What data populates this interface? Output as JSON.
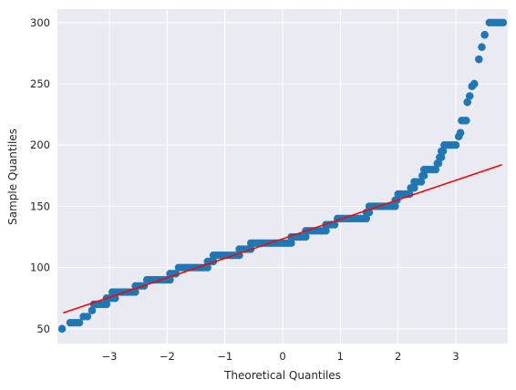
{
  "chart_data": {
    "type": "scatter",
    "style": {
      "background": "#eaeaf2",
      "grid": true,
      "grid_color": "#ffffff",
      "point_color": "#1f77b4",
      "line_color": "#ff0000"
    },
    "xlabel": "Theoretical Quantiles",
    "ylabel": "Sample Quantiles",
    "xlim": [
      -3.9,
      3.9
    ],
    "ylim": [
      38,
      311
    ],
    "xticks": [
      -3,
      -2,
      -1,
      0,
      1,
      2,
      3
    ],
    "xtick_labels": [
      "−3",
      "−2",
      "−1",
      "0",
      "1",
      "2",
      "3"
    ],
    "yticks": [
      50,
      100,
      150,
      200,
      250,
      300
    ],
    "ytick_labels": [
      "50",
      "100",
      "150",
      "200",
      "250",
      "300"
    ],
    "reference_line": {
      "x": [
        -3.8,
        3.8
      ],
      "y": [
        63,
        184
      ]
    },
    "steps": [
      {
        "y": 50,
        "x0": -3.82,
        "x1": -3.82
      },
      {
        "y": 55,
        "x0": -3.68,
        "x1": -3.52
      },
      {
        "y": 60,
        "x0": -3.45,
        "x1": -3.38
      },
      {
        "y": 65,
        "x0": -3.3,
        "x1": -3.3
      },
      {
        "y": 70,
        "x0": -3.27,
        "x1": -3.05
      },
      {
        "y": 75,
        "x0": -3.05,
        "x1": -2.9
      },
      {
        "y": 80,
        "x0": -2.95,
        "x1": -2.55
      },
      {
        "y": 85,
        "x0": -2.55,
        "x1": -2.4
      },
      {
        "y": 90,
        "x0": -2.35,
        "x1": -1.95
      },
      {
        "y": 95,
        "x0": -1.95,
        "x1": -1.85
      },
      {
        "y": 100,
        "x0": -1.8,
        "x1": -1.3
      },
      {
        "y": 105,
        "x0": -1.3,
        "x1": -1.2
      },
      {
        "y": 110,
        "x0": -1.2,
        "x1": -0.75
      },
      {
        "y": 115,
        "x0": -0.75,
        "x1": -0.55
      },
      {
        "y": 120,
        "x0": -0.55,
        "x1": 0.15
      },
      {
        "y": 125,
        "x0": 0.15,
        "x1": 0.4
      },
      {
        "y": 130,
        "x0": 0.4,
        "x1": 0.75
      },
      {
        "y": 135,
        "x0": 0.75,
        "x1": 0.9
      },
      {
        "y": 140,
        "x0": 0.95,
        "x1": 1.45
      },
      {
        "y": 145,
        "x0": 1.45,
        "x1": 1.5
      },
      {
        "y": 150,
        "x0": 1.5,
        "x1": 1.95
      },
      {
        "y": 155,
        "x0": 1.95,
        "x1": 1.98
      },
      {
        "y": 160,
        "x0": 2.0,
        "x1": 2.2
      },
      {
        "y": 165,
        "x0": 2.22,
        "x1": 2.28
      },
      {
        "y": 170,
        "x0": 2.28,
        "x1": 2.4
      },
      {
        "y": 175,
        "x0": 2.42,
        "x1": 2.45
      },
      {
        "y": 180,
        "x0": 2.45,
        "x1": 2.65
      },
      {
        "y": 185,
        "x0": 2.68,
        "x1": 2.7
      },
      {
        "y": 190,
        "x0": 2.72,
        "x1": 2.75
      },
      {
        "y": 195,
        "x0": 2.75,
        "x1": 2.78
      },
      {
        "y": 200,
        "x0": 2.8,
        "x1": 3.0
      },
      {
        "y": 207,
        "x0": 3.05,
        "x1": 3.05
      },
      {
        "y": 210,
        "x0": 3.08,
        "x1": 3.08
      },
      {
        "y": 220,
        "x0": 3.1,
        "x1": 3.18
      },
      {
        "y": 235,
        "x0": 3.2,
        "x1": 3.2
      },
      {
        "y": 240,
        "x0": 3.24,
        "x1": 3.24
      },
      {
        "y": 248,
        "x0": 3.28,
        "x1": 3.28
      },
      {
        "y": 250,
        "x0": 3.32,
        "x1": 3.32
      },
      {
        "y": 270,
        "x0": 3.4,
        "x1": 3.4
      },
      {
        "y": 280,
        "x0": 3.45,
        "x1": 3.45
      },
      {
        "y": 290,
        "x0": 3.5,
        "x1": 3.5
      },
      {
        "y": 300,
        "x0": 3.58,
        "x1": 3.82
      }
    ]
  }
}
